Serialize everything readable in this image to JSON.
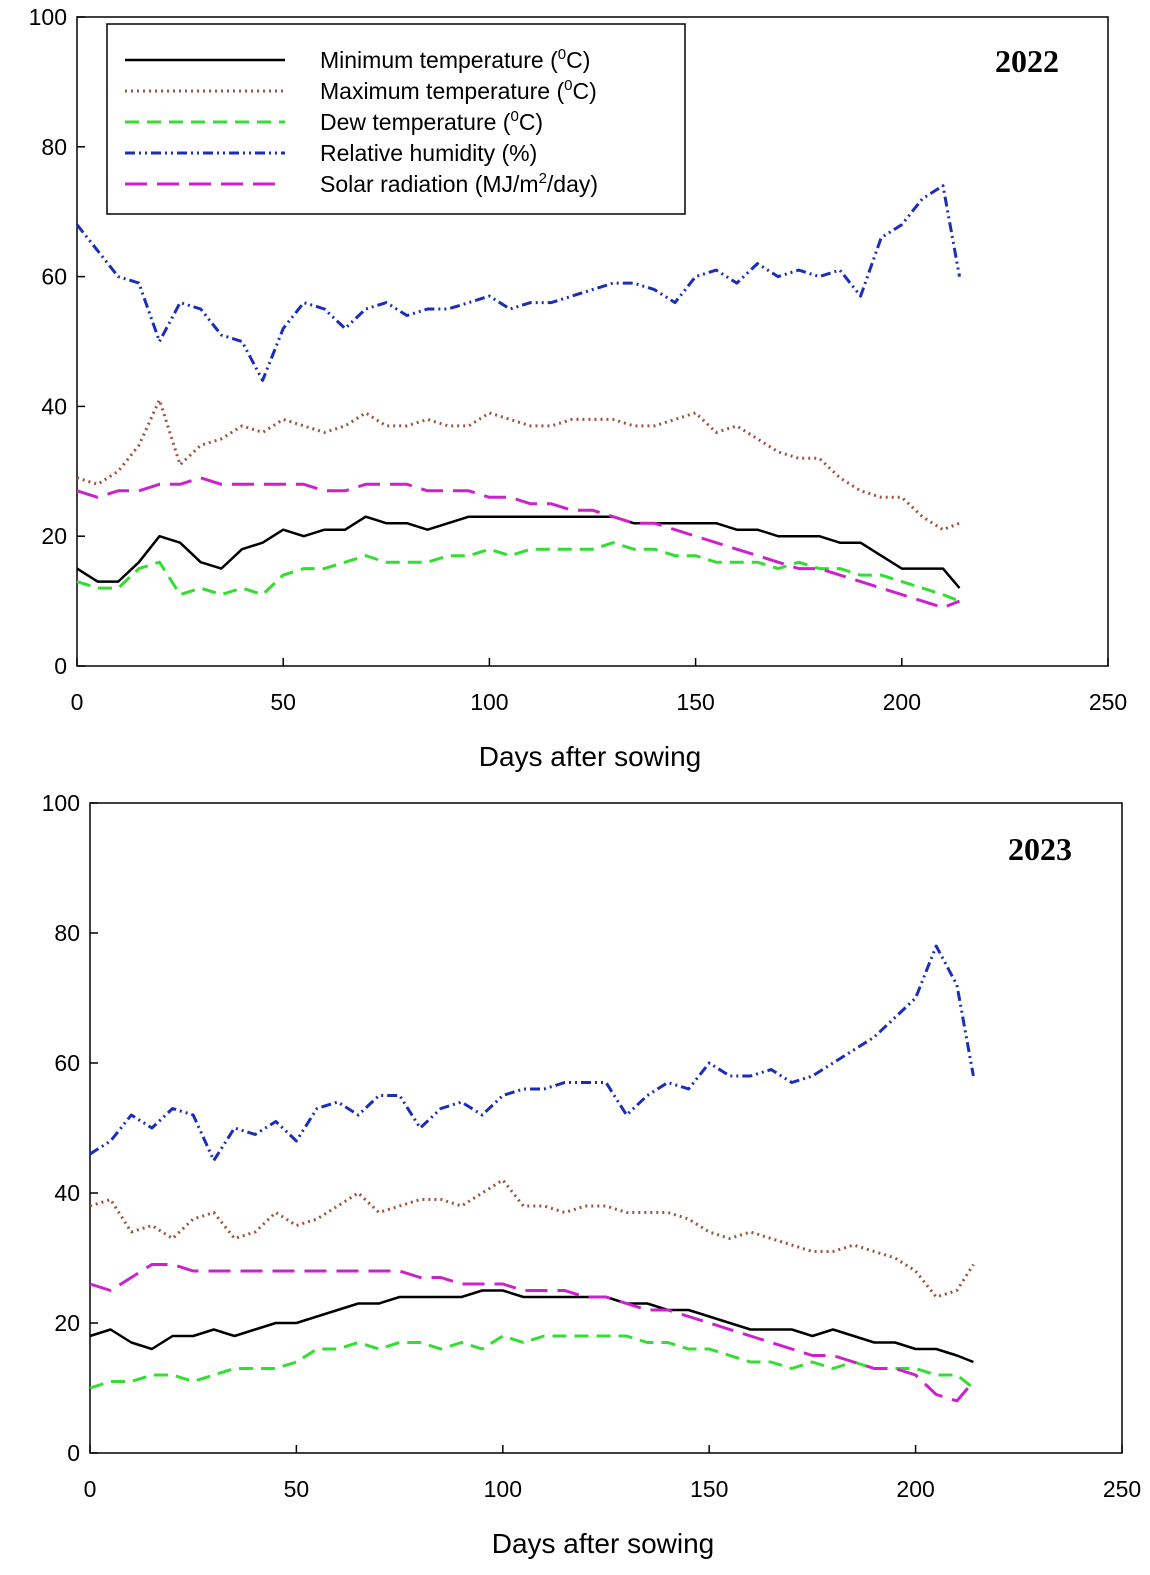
{
  "chart_data": [
    {
      "type": "line",
      "year_label": "2022",
      "xlabel": "Days after sowing",
      "ylabel": "",
      "xlim": [
        0,
        250
      ],
      "ylim": [
        0,
        100
      ],
      "x_ticks": [
        "0",
        "50",
        "100",
        "150",
        "200",
        "250"
      ],
      "y_ticks": [
        "0",
        "20",
        "40",
        "60",
        "80",
        "100"
      ],
      "legend": {
        "placement": "top-left",
        "entries": [
          {
            "pre": "Minimum temperature (",
            "sup": "0",
            "post": "C)"
          },
          {
            "pre": "Maximum temperature (",
            "sup": "0",
            "post": "C)"
          },
          {
            "pre": "Dew temperature (",
            "sup": "0",
            "post": "C)"
          },
          {
            "pre": "Relative humidity (%)",
            "sup": "",
            "post": ""
          },
          {
            "pre": "Solar radiation (MJ/m",
            "sup": "2",
            "post": "/day)"
          }
        ]
      },
      "series": [
        {
          "name": "Minimum temperature (0C)",
          "color": "#000000",
          "style": "solid",
          "x": [
            0,
            5,
            10,
            15,
            20,
            25,
            30,
            35,
            40,
            45,
            50,
            55,
            60,
            65,
            70,
            75,
            80,
            85,
            90,
            95,
            100,
            105,
            110,
            115,
            120,
            125,
            130,
            135,
            140,
            145,
            150,
            155,
            160,
            165,
            170,
            175,
            180,
            185,
            190,
            195,
            200,
            205,
            210,
            214
          ],
          "y": [
            15,
            13,
            13,
            16,
            20,
            19,
            16,
            15,
            18,
            19,
            21,
            20,
            21,
            21,
            23,
            22,
            22,
            21,
            22,
            23,
            23,
            23,
            23,
            23,
            23,
            23,
            23,
            22,
            22,
            22,
            22,
            22,
            21,
            21,
            20,
            20,
            20,
            19,
            19,
            17,
            15,
            15,
            15,
            12
          ]
        },
        {
          "name": "Maximum temperature (0C)",
          "color": "#a0523c",
          "style": "dotted",
          "x": [
            0,
            5,
            10,
            15,
            20,
            25,
            30,
            35,
            40,
            45,
            50,
            55,
            60,
            65,
            70,
            75,
            80,
            85,
            90,
            95,
            100,
            105,
            110,
            115,
            120,
            125,
            130,
            135,
            140,
            145,
            150,
            155,
            160,
            165,
            170,
            175,
            180,
            185,
            190,
            195,
            200,
            205,
            210,
            214
          ],
          "y": [
            29,
            28,
            30,
            34,
            41,
            31,
            34,
            35,
            37,
            36,
            38,
            37,
            36,
            37,
            39,
            37,
            37,
            38,
            37,
            37,
            39,
            38,
            37,
            37,
            38,
            38,
            38,
            37,
            37,
            38,
            39,
            36,
            37,
            35,
            33,
            32,
            32,
            29,
            27,
            26,
            26,
            23,
            21,
            22
          ]
        },
        {
          "name": "Dew temperature (0C)",
          "color": "#33dd33",
          "style": "dashed",
          "x": [
            0,
            5,
            10,
            15,
            20,
            25,
            30,
            35,
            40,
            45,
            50,
            55,
            60,
            65,
            70,
            75,
            80,
            85,
            90,
            95,
            100,
            105,
            110,
            115,
            120,
            125,
            130,
            135,
            140,
            145,
            150,
            155,
            160,
            165,
            170,
            175,
            180,
            185,
            190,
            195,
            200,
            205,
            210,
            214
          ],
          "y": [
            13,
            12,
            12,
            15,
            16,
            11,
            12,
            11,
            12,
            11,
            14,
            15,
            15,
            16,
            17,
            16,
            16,
            16,
            17,
            17,
            18,
            17,
            18,
            18,
            18,
            18,
            19,
            18,
            18,
            17,
            17,
            16,
            16,
            16,
            15,
            16,
            15,
            15,
            14,
            14,
            13,
            12,
            11,
            10
          ]
        },
        {
          "name": "Relative humidity (%)",
          "color": "#1a2eb8",
          "style": "dash-dot-dot",
          "x": [
            0,
            5,
            10,
            15,
            20,
            25,
            30,
            35,
            40,
            45,
            50,
            55,
            60,
            65,
            70,
            75,
            80,
            85,
            90,
            95,
            100,
            105,
            110,
            115,
            120,
            125,
            130,
            135,
            140,
            145,
            150,
            155,
            160,
            165,
            170,
            175,
            180,
            185,
            190,
            195,
            200,
            205,
            210,
            214
          ],
          "y": [
            68,
            64,
            60,
            59,
            50,
            56,
            55,
            51,
            50,
            44,
            52,
            56,
            55,
            52,
            55,
            56,
            54,
            55,
            55,
            56,
            57,
            55,
            56,
            56,
            57,
            58,
            59,
            59,
            58,
            56,
            60,
            61,
            59,
            62,
            60,
            61,
            60,
            61,
            57,
            66,
            68,
            72,
            74,
            60
          ]
        },
        {
          "name": "Solar radiation (MJ/m2/day)",
          "color": "#cc22cc",
          "style": "long-dash",
          "x": [
            0,
            5,
            10,
            15,
            20,
            25,
            30,
            35,
            40,
            45,
            50,
            55,
            60,
            65,
            70,
            75,
            80,
            85,
            90,
            95,
            100,
            105,
            110,
            115,
            120,
            125,
            130,
            135,
            140,
            145,
            150,
            155,
            160,
            165,
            170,
            175,
            180,
            185,
            190,
            195,
            200,
            205,
            210,
            214
          ],
          "y": [
            27,
            26,
            27,
            27,
            28,
            28,
            29,
            28,
            28,
            28,
            28,
            28,
            27,
            27,
            28,
            28,
            28,
            27,
            27,
            27,
            26,
            26,
            25,
            25,
            24,
            24,
            23,
            22,
            22,
            21,
            20,
            19,
            18,
            17,
            16,
            15,
            15,
            14,
            13,
            12,
            11,
            10,
            9,
            10
          ]
        }
      ]
    },
    {
      "type": "line",
      "year_label": "2023",
      "xlabel": "Days after sowing",
      "ylabel": "",
      "xlim": [
        0,
        250
      ],
      "ylim": [
        0,
        100
      ],
      "x_ticks": [
        "0",
        "50",
        "100",
        "150",
        "200",
        "250"
      ],
      "y_ticks": [
        "0",
        "20",
        "40",
        "60",
        "80",
        "100"
      ],
      "legend": null,
      "series": [
        {
          "name": "Minimum temperature (0C)",
          "color": "#000000",
          "style": "solid",
          "x": [
            0,
            5,
            10,
            15,
            20,
            25,
            30,
            35,
            40,
            45,
            50,
            55,
            60,
            65,
            70,
            75,
            80,
            85,
            90,
            95,
            100,
            105,
            110,
            115,
            120,
            125,
            130,
            135,
            140,
            145,
            150,
            155,
            160,
            165,
            170,
            175,
            180,
            185,
            190,
            195,
            200,
            205,
            210,
            214
          ],
          "y": [
            18,
            19,
            17,
            16,
            18,
            18,
            19,
            18,
            19,
            20,
            20,
            21,
            22,
            23,
            23,
            24,
            24,
            24,
            24,
            25,
            25,
            24,
            24,
            24,
            24,
            24,
            23,
            23,
            22,
            22,
            21,
            20,
            19,
            19,
            19,
            18,
            19,
            18,
            17,
            17,
            16,
            16,
            15,
            14
          ]
        },
        {
          "name": "Maximum temperature (0C)",
          "color": "#a0523c",
          "style": "dotted",
          "x": [
            0,
            5,
            10,
            15,
            20,
            25,
            30,
            35,
            40,
            45,
            50,
            55,
            60,
            65,
            70,
            75,
            80,
            85,
            90,
            95,
            100,
            105,
            110,
            115,
            120,
            125,
            130,
            135,
            140,
            145,
            150,
            155,
            160,
            165,
            170,
            175,
            180,
            185,
            190,
            195,
            200,
            205,
            210,
            214
          ],
          "y": [
            38,
            39,
            34,
            35,
            33,
            36,
            37,
            33,
            34,
            37,
            35,
            36,
            38,
            40,
            37,
            38,
            39,
            39,
            38,
            40,
            42,
            38,
            38,
            37,
            38,
            38,
            37,
            37,
            37,
            36,
            34,
            33,
            34,
            33,
            32,
            31,
            31,
            32,
            31,
            30,
            28,
            24,
            25,
            29
          ]
        },
        {
          "name": "Dew temperature (0C)",
          "color": "#33dd33",
          "style": "dashed",
          "x": [
            0,
            5,
            10,
            15,
            20,
            25,
            30,
            35,
            40,
            45,
            50,
            55,
            60,
            65,
            70,
            75,
            80,
            85,
            90,
            95,
            100,
            105,
            110,
            115,
            120,
            125,
            130,
            135,
            140,
            145,
            150,
            155,
            160,
            165,
            170,
            175,
            180,
            185,
            190,
            195,
            200,
            205,
            210,
            214
          ],
          "y": [
            10,
            11,
            11,
            12,
            12,
            11,
            12,
            13,
            13,
            13,
            14,
            16,
            16,
            17,
            16,
            17,
            17,
            16,
            17,
            16,
            18,
            17,
            18,
            18,
            18,
            18,
            18,
            17,
            17,
            16,
            16,
            15,
            14,
            14,
            13,
            14,
            13,
            14,
            13,
            13,
            13,
            12,
            12,
            10
          ]
        },
        {
          "name": "Relative humidity (%)",
          "color": "#1a2eb8",
          "style": "dash-dot-dot",
          "x": [
            0,
            5,
            10,
            15,
            20,
            25,
            30,
            35,
            40,
            45,
            50,
            55,
            60,
            65,
            70,
            75,
            80,
            85,
            90,
            95,
            100,
            105,
            110,
            115,
            120,
            125,
            130,
            135,
            140,
            145,
            150,
            155,
            160,
            165,
            170,
            175,
            180,
            185,
            190,
            195,
            200,
            205,
            210,
            214
          ],
          "y": [
            46,
            48,
            52,
            50,
            53,
            52,
            45,
            50,
            49,
            51,
            48,
            53,
            54,
            52,
            55,
            55,
            50,
            53,
            54,
            52,
            55,
            56,
            56,
            57,
            57,
            57,
            52,
            55,
            57,
            56,
            60,
            58,
            58,
            59,
            57,
            58,
            60,
            62,
            64,
            67,
            70,
            78,
            72,
            58
          ]
        },
        {
          "name": "Solar radiation (MJ/m2/day)",
          "color": "#cc22cc",
          "style": "long-dash",
          "x": [
            0,
            5,
            10,
            15,
            20,
            25,
            30,
            35,
            40,
            45,
            50,
            55,
            60,
            65,
            70,
            75,
            80,
            85,
            90,
            95,
            100,
            105,
            110,
            115,
            120,
            125,
            130,
            135,
            140,
            145,
            150,
            155,
            160,
            165,
            170,
            175,
            180,
            185,
            190,
            195,
            200,
            205,
            210,
            214
          ],
          "y": [
            26,
            25,
            27,
            29,
            29,
            28,
            28,
            28,
            28,
            28,
            28,
            28,
            28,
            28,
            28,
            28,
            27,
            27,
            26,
            26,
            26,
            25,
            25,
            25,
            24,
            24,
            23,
            22,
            22,
            21,
            20,
            19,
            18,
            17,
            16,
            15,
            15,
            14,
            13,
            13,
            12,
            9,
            8,
            11
          ]
        }
      ]
    }
  ]
}
